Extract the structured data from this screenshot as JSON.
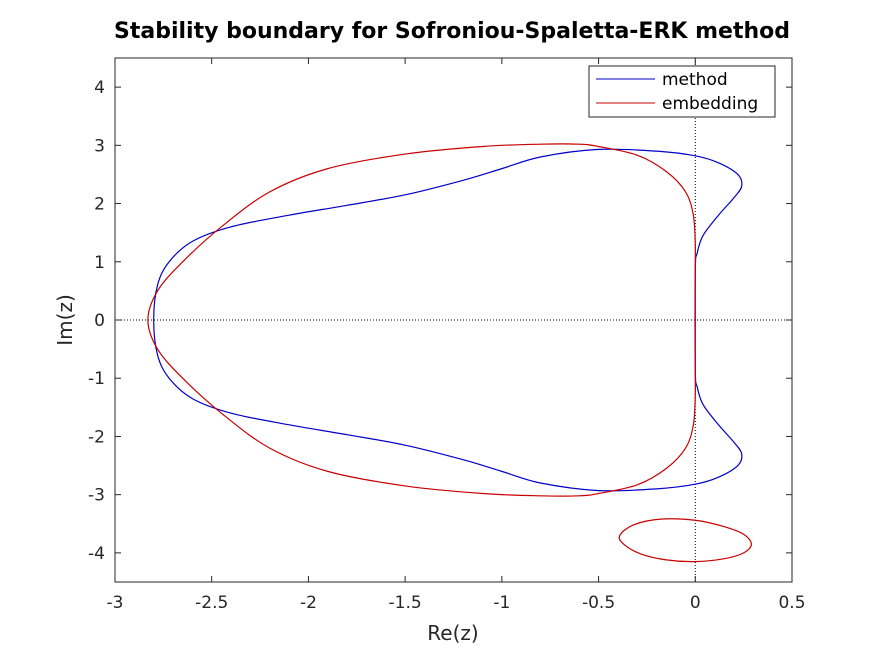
{
  "chart_data": {
    "type": "line",
    "title": "Stability boundary for Sofroniou-Spaletta-ERK method",
    "xlabel": "Re(z)",
    "ylabel": "Im(z)",
    "xlim": [
      -3,
      0.5
    ],
    "ylim": [
      -4.5,
      4.5
    ],
    "xticks": [
      -3,
      -2.5,
      -2,
      -1.5,
      -1,
      -0.5,
      0,
      0.5
    ],
    "xtick_labels": [
      "-3",
      "-2.5",
      "-2",
      "-1.5",
      "-1",
      "-0.5",
      "0",
      "0.5"
    ],
    "yticks": [
      4,
      3,
      2,
      1,
      0,
      -1,
      -2,
      -3,
      -4
    ],
    "ytick_labels": [
      "4",
      "3",
      "2",
      "1",
      "0",
      "-1",
      "-2",
      "-3",
      "-4"
    ],
    "grid": false,
    "reference_lines": [
      "x=0 dotted",
      "y=0 dotted"
    ],
    "legend_position": "top-right",
    "series": [
      {
        "name": "method",
        "color": "#0000c8",
        "closed": true,
        "points": [
          [
            0.0,
            0.85
          ],
          [
            0.01,
            1.15
          ],
          [
            0.04,
            1.45
          ],
          [
            0.12,
            1.8
          ],
          [
            0.2,
            2.1
          ],
          [
            0.24,
            2.3
          ],
          [
            0.22,
            2.5
          ],
          [
            0.12,
            2.7
          ],
          [
            0.0,
            2.82
          ],
          [
            -0.2,
            2.9
          ],
          [
            -0.5,
            2.93
          ],
          [
            -0.8,
            2.8
          ],
          [
            -1.0,
            2.6
          ],
          [
            -1.2,
            2.4
          ],
          [
            -1.5,
            2.15
          ],
          [
            -1.8,
            1.97
          ],
          [
            -2.1,
            1.8
          ],
          [
            -2.4,
            1.6
          ],
          [
            -2.6,
            1.35
          ],
          [
            -2.72,
            1.0
          ],
          [
            -2.78,
            0.6
          ],
          [
            -2.8,
            0.0
          ],
          [
            -2.78,
            -0.6
          ],
          [
            -2.72,
            -1.0
          ],
          [
            -2.6,
            -1.35
          ],
          [
            -2.4,
            -1.6
          ],
          [
            -2.1,
            -1.8
          ],
          [
            -1.8,
            -1.97
          ],
          [
            -1.5,
            -2.15
          ],
          [
            -1.2,
            -2.4
          ],
          [
            -1.0,
            -2.6
          ],
          [
            -0.8,
            -2.8
          ],
          [
            -0.5,
            -2.93
          ],
          [
            -0.2,
            -2.9
          ],
          [
            0.0,
            -2.82
          ],
          [
            0.12,
            -2.7
          ],
          [
            0.22,
            -2.5
          ],
          [
            0.24,
            -2.3
          ],
          [
            0.2,
            -2.1
          ],
          [
            0.12,
            -1.8
          ],
          [
            0.04,
            -1.45
          ],
          [
            0.01,
            -1.15
          ],
          [
            0.0,
            -0.85
          ]
        ]
      },
      {
        "name": "embedding",
        "color": "#c80000",
        "closed": true,
        "points": [
          [
            0.0,
            0.9
          ],
          [
            0.0,
            1.3
          ],
          [
            -0.01,
            1.8
          ],
          [
            -0.05,
            2.2
          ],
          [
            -0.15,
            2.55
          ],
          [
            -0.3,
            2.83
          ],
          [
            -0.5,
            2.98
          ],
          [
            -0.6,
            3.02
          ],
          [
            -0.8,
            3.02
          ],
          [
            -1.1,
            2.98
          ],
          [
            -1.5,
            2.85
          ],
          [
            -1.9,
            2.6
          ],
          [
            -2.2,
            2.2
          ],
          [
            -2.45,
            1.6
          ],
          [
            -2.65,
            1.0
          ],
          [
            -2.78,
            0.5
          ],
          [
            -2.83,
            0.0
          ],
          [
            -2.78,
            -0.5
          ],
          [
            -2.65,
            -1.0
          ],
          [
            -2.45,
            -1.6
          ],
          [
            -2.2,
            -2.2
          ],
          [
            -1.9,
            -2.6
          ],
          [
            -1.5,
            -2.85
          ],
          [
            -1.1,
            -2.98
          ],
          [
            -0.8,
            -3.02
          ],
          [
            -0.6,
            -3.02
          ],
          [
            -0.5,
            -2.98
          ],
          [
            -0.3,
            -2.83
          ],
          [
            -0.15,
            -2.55
          ],
          [
            -0.05,
            -2.2
          ],
          [
            -0.01,
            -1.8
          ],
          [
            0.0,
            -1.3
          ],
          [
            0.0,
            -0.9
          ]
        ]
      },
      {
        "name": "",
        "color": "#c80000",
        "closed": true,
        "points": [
          [
            0.29,
            -3.85
          ],
          [
            0.25,
            -4.0
          ],
          [
            0.15,
            -4.1
          ],
          [
            0.0,
            -4.15
          ],
          [
            -0.15,
            -4.12
          ],
          [
            -0.28,
            -4.02
          ],
          [
            -0.37,
            -3.85
          ],
          [
            -0.39,
            -3.7
          ],
          [
            -0.32,
            -3.52
          ],
          [
            -0.18,
            -3.42
          ],
          [
            0.0,
            -3.44
          ],
          [
            0.15,
            -3.55
          ],
          [
            0.25,
            -3.68
          ]
        ]
      }
    ],
    "legend": [
      {
        "label": "method",
        "color": "#0000c8"
      },
      {
        "label": "embedding",
        "color": "#c80000"
      }
    ]
  }
}
